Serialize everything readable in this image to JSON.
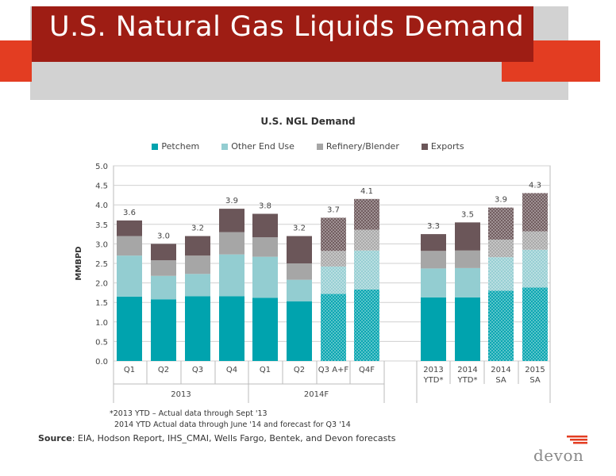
{
  "title": "U.S. Natural Gas Liquids Demand",
  "chart_data": {
    "type": "bar",
    "title": "U.S. NGL Demand",
    "ylabel": "MMBPD",
    "xlabel": "",
    "ylim": [
      0,
      5
    ],
    "yticks": [
      "0.0",
      "0.5",
      "1.0",
      "1.5",
      "2.0",
      "2.5",
      "3.0",
      "3.5",
      "4.0",
      "4.5",
      "5.0"
    ],
    "legend_position": "top",
    "grid": true,
    "categories": [
      "Q1",
      "Q2",
      "Q3",
      "Q4",
      "Q1",
      "Q2",
      "Q3 A+F",
      "Q4F",
      "2013 YTD*",
      "2014 YTD*",
      "2014 SA",
      "2015 SA"
    ],
    "groups": [
      {
        "label": "2013",
        "from": 0,
        "to": 3
      },
      {
        "label": "2014F",
        "from": 4,
        "to": 7
      }
    ],
    "forecast_pattern": [
      false,
      false,
      false,
      false,
      false,
      false,
      true,
      true,
      false,
      false,
      true,
      true
    ],
    "series": [
      {
        "name": "Petchem",
        "color": "#00a3ae",
        "values": [
          1.65,
          1.58,
          1.66,
          1.66,
          1.62,
          1.53,
          1.72,
          1.83,
          1.63,
          1.63,
          1.8,
          1.88
        ]
      },
      {
        "name": "Other End Use",
        "color": "#93cdd1",
        "values": [
          1.05,
          0.6,
          0.57,
          1.07,
          1.05,
          0.55,
          0.7,
          1.0,
          0.74,
          0.75,
          0.86,
          0.97
        ]
      },
      {
        "name": "Refinery/Blender",
        "color": "#a6a6a6",
        "values": [
          0.5,
          0.4,
          0.47,
          0.57,
          0.5,
          0.42,
          0.4,
          0.53,
          0.45,
          0.45,
          0.45,
          0.47
        ]
      },
      {
        "name": "Exports",
        "color": "#6b5659",
        "values": [
          0.4,
          0.42,
          0.5,
          0.6,
          0.6,
          0.7,
          0.85,
          0.79,
          0.43,
          0.72,
          0.82,
          0.98
        ]
      }
    ],
    "totals": [
      "3.6",
      "3.0",
      "3.2",
      "3.9",
      "3.8",
      "3.2",
      "3.7",
      "4.1",
      "3.3",
      "3.5",
      "3.9",
      "4.3"
    ]
  },
  "footnotes": {
    "line1": "*2013 YTD – Actual data through Sept '13",
    "line2": "2014 YTD Actual data through June '14 and forecast for Q3 '14"
  },
  "source": {
    "label": "Source",
    "text": ": EIA, Hodson Report, IHS_CMAI, Wells Fargo, Bentek, and Devon forecasts"
  },
  "logo": {
    "text": "devon",
    "bar_color": "#e33d22"
  }
}
